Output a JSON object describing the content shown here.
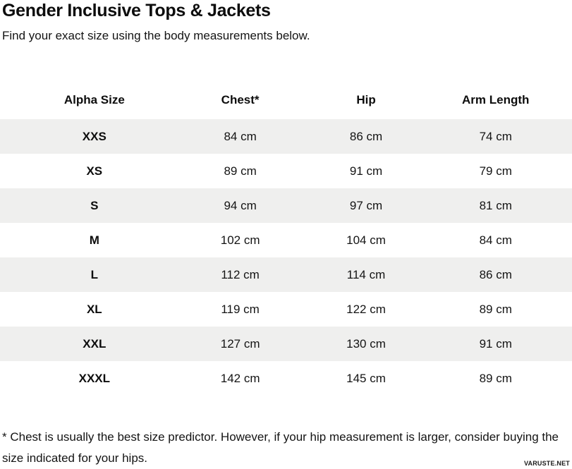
{
  "page": {
    "title": "Gender Inclusive Tops & Jackets",
    "subtitle": "Find your exact size using the body measurements below.",
    "footnote": "* Chest is usually the best size predictor. However, if your hip measurement is larger, consider buying the size indicated for your hips.",
    "watermark": "VARUSTE.NET"
  },
  "size_table": {
    "columns": [
      "Alpha Size",
      "Chest*",
      "Hip",
      "Arm Length"
    ],
    "rows": [
      {
        "alpha_size": "XXS",
        "chest": "84 cm",
        "hip": "86 cm",
        "arm_length": "74 cm"
      },
      {
        "alpha_size": "XS",
        "chest": "89 cm",
        "hip": "91 cm",
        "arm_length": "79 cm"
      },
      {
        "alpha_size": "S",
        "chest": "94 cm",
        "hip": "97 cm",
        "arm_length": "81 cm"
      },
      {
        "alpha_size": "M",
        "chest": "102 cm",
        "hip": "104 cm",
        "arm_length": "84 cm"
      },
      {
        "alpha_size": "L",
        "chest": "112 cm",
        "hip": "114 cm",
        "arm_length": "86 cm"
      },
      {
        "alpha_size": "XL",
        "chest": "119 cm",
        "hip": "122 cm",
        "arm_length": "89 cm"
      },
      {
        "alpha_size": "XXL",
        "chest": "127 cm",
        "hip": "130 cm",
        "arm_length": "91 cm"
      },
      {
        "alpha_size": "XXXL",
        "chest": "142 cm",
        "hip": "145 cm",
        "arm_length": "89 cm"
      }
    ]
  },
  "colors": {
    "row_stripe": "#efefee",
    "text": "#111111",
    "background": "#ffffff"
  }
}
